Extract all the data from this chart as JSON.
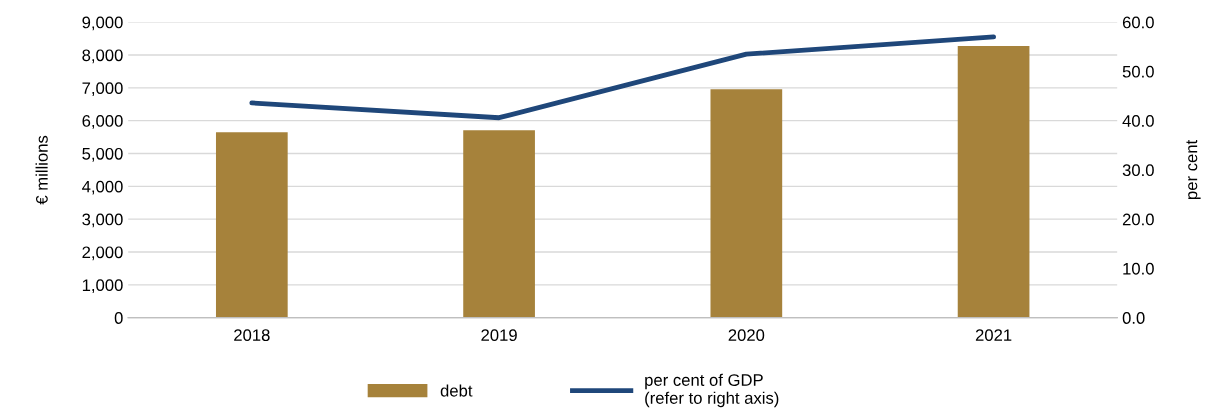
{
  "chart_data": {
    "type": "bar",
    "ylabel": "€ millions",
    "y2label": "per cent",
    "categories": [
      "2018",
      "2019",
      "2020",
      "2021"
    ],
    "series": [
      {
        "name": "debt",
        "color": "#a6823b",
        "values": [
          5650,
          5710,
          6960,
          8270
        ]
      },
      {
        "name": "per cent of GDP\n(refer to right axis)",
        "type": "line",
        "axis": "y2",
        "color": "#1f477a",
        "values": [
          43.6,
          40.6,
          53.5,
          57.0
        ]
      }
    ],
    "ylim": [
      0,
      9000
    ],
    "yticks": [
      {
        "value": 0,
        "label": "0"
      },
      {
        "value": 1000,
        "label": "1,000"
      },
      {
        "value": 2000,
        "label": "2,000"
      },
      {
        "value": 3000,
        "label": "3,000"
      },
      {
        "value": 4000,
        "label": "4,000"
      },
      {
        "value": 5000,
        "label": "5,000"
      },
      {
        "value": 6000,
        "label": "6,000"
      },
      {
        "value": 7000,
        "label": "7,000"
      },
      {
        "value": 8000,
        "label": "8,000"
      },
      {
        "value": 9000,
        "label": "9,000"
      }
    ],
    "y2lim": [
      0,
      60
    ],
    "y2ticks": [
      {
        "value": 0,
        "label": "0.0"
      },
      {
        "value": 10,
        "label": "10.0"
      },
      {
        "value": 20,
        "label": "20.0"
      },
      {
        "value": 30,
        "label": "30.0"
      },
      {
        "value": 40,
        "label": "40.0"
      },
      {
        "value": 50,
        "label": "50.0"
      },
      {
        "value": 60,
        "label": "60.0"
      }
    ],
    "grid": "y",
    "legend": "bottom",
    "marker": "none",
    "line_style": "solid"
  }
}
